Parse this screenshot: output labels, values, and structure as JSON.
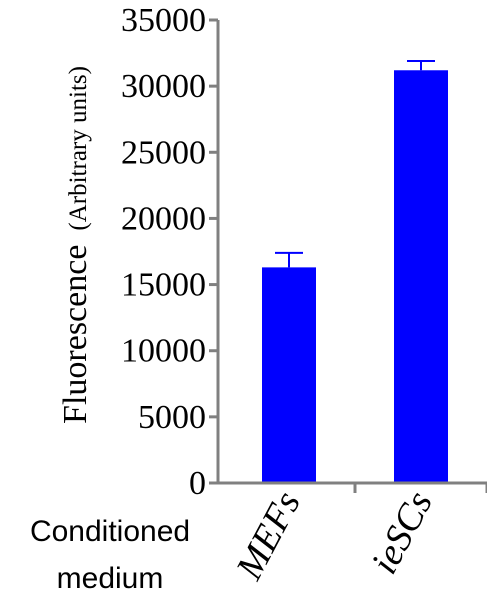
{
  "chart_data": {
    "type": "bar",
    "ylabel_main": "Fluorescence",
    "ylabel_unit": "(Arbitrary units)",
    "xlabel": "Conditioned medium",
    "xlabel_lines": [
      "Conditioned",
      "medium"
    ],
    "categories": [
      "MEFs",
      "ieSCs"
    ],
    "values": [
      16300,
      31200
    ],
    "errors": [
      1100,
      700
    ],
    "ylim": [
      0,
      35000
    ],
    "yticks": [
      0,
      5000,
      10000,
      15000,
      20000,
      25000,
      30000,
      35000
    ],
    "ytick_labels": [
      "0",
      "5000",
      "10000",
      "15000",
      "20000",
      "25000",
      "30000",
      "35000"
    ],
    "bar_color": "#0000ff",
    "error_color": "#0000ff",
    "axis_color": "#808080",
    "grid": false,
    "legend": "none"
  }
}
